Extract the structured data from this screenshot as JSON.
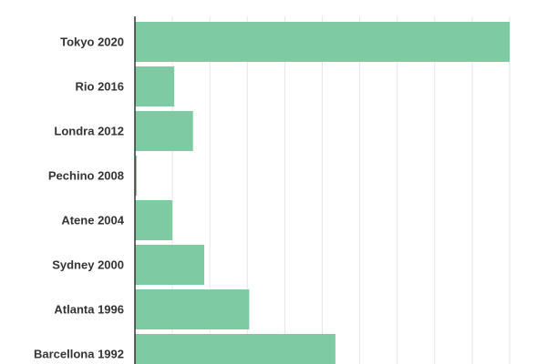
{
  "chart_data": {
    "type": "bar",
    "orientation": "horizontal",
    "categories": [
      "Tokyo 2020",
      "Rio 2016",
      "Londra 2012",
      "Pechino 2008",
      "Atene 2004",
      "Sydney 2000",
      "Atlanta 1996",
      "Barcellona 1992"
    ],
    "values": [
      100,
      10.5,
      15.5,
      0.5,
      10,
      18.5,
      30.5,
      53.5
    ],
    "xlim": [
      0,
      100
    ],
    "grid": true,
    "grid_steps": 10,
    "colors": {
      "bar": "#7ecaa3",
      "grid": "#e6e6e6",
      "axis": "#333333"
    }
  }
}
